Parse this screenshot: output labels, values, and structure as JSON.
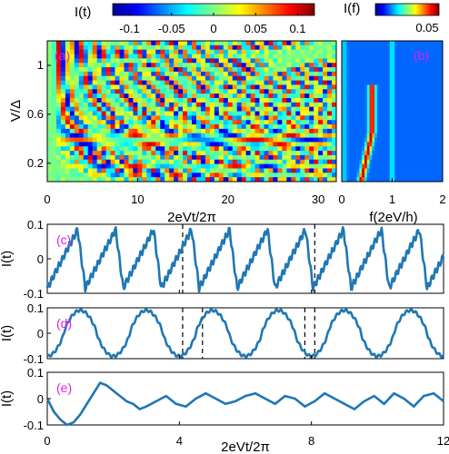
{
  "colors": {
    "trace": "#1f77b4",
    "panel_label": "#e020e0",
    "marker": "#000000",
    "axes": "#000000"
  },
  "chart_data": [
    {
      "panel": "(a)",
      "type": "heatmap",
      "colorbar_label": "I(t)",
      "colorbar_ticks": [
        "-0.1",
        "-0.05",
        "0",
        "0.05",
        "0.1"
      ],
      "colorbar_range": [
        -0.12,
        0.12
      ],
      "xlabel": "2eVt/2π",
      "ylabel": "V/Δ",
      "xticks": [
        "0",
        "10",
        "20",
        "30"
      ],
      "yticks": [
        "0.2",
        "0.6",
        "1"
      ],
      "xlim": [
        0,
        32
      ],
      "ylim": [
        0.05,
        1.2
      ]
    },
    {
      "panel": "(b)",
      "type": "heatmap",
      "colorbar_label": "I(f)",
      "colorbar_ticks": [
        "0.05"
      ],
      "colorbar_range": [
        0,
        0.07
      ],
      "xlabel": "f(2eV/h)",
      "xticks": [
        "0",
        "1",
        "2"
      ],
      "xlim": [
        0,
        2
      ],
      "ylim": [
        0.05,
        1.2
      ]
    },
    {
      "panel": "(c)",
      "type": "line",
      "ylabel": "I(t)",
      "yticks": [
        "-0.1",
        "0",
        "0.1"
      ],
      "ylim": [
        -0.1,
        0.1
      ],
      "xlim": [
        0,
        12
      ],
      "markers_x": [
        4.1,
        8.1
      ],
      "series": [
        {
          "shape": "sawtooth",
          "period": 1.15,
          "amplitude": 0.085,
          "offset": 0.0
        }
      ]
    },
    {
      "panel": "(d)",
      "type": "line",
      "ylabel": "I(t)",
      "yticks": [
        "-0.1",
        "0",
        "0.1"
      ],
      "ylim": [
        -0.1,
        0.1
      ],
      "xlim": [
        0,
        12
      ],
      "markers_x": [
        4.1,
        4.7,
        7.8,
        8.1
      ],
      "series": [
        {
          "shape": "triangle",
          "period": 2.0,
          "amplitude": 0.09,
          "offset": 0.0
        }
      ]
    },
    {
      "panel": "(e)",
      "type": "line",
      "ylabel": "I(t)",
      "yticks": [
        "-0.1",
        "0",
        "0.1"
      ],
      "ylim": [
        -0.1,
        0.1
      ],
      "xlim": [
        0,
        12
      ],
      "xlabel": "2eVt/2π",
      "xticks": [
        "0",
        "4",
        "8",
        "12"
      ],
      "markers_x": [],
      "series": [
        {
          "x": [
            0,
            0.2,
            0.4,
            0.6,
            0.8,
            1.0,
            1.2,
            1.4,
            1.6,
            1.8,
            2.0,
            2.2,
            2.4,
            2.6,
            2.8,
            3.0,
            3.3,
            3.6,
            3.9,
            4.2,
            4.5,
            4.8,
            5.1,
            5.4,
            5.7,
            6.0,
            6.3,
            6.6,
            6.9,
            7.2,
            7.5,
            7.8,
            8.1,
            8.4,
            8.7,
            9.0,
            9.3,
            9.6,
            9.9,
            10.2,
            10.5,
            10.8,
            11.1,
            11.4,
            11.7,
            12.0
          ],
          "y": [
            0.0,
            -0.05,
            -0.08,
            -0.1,
            -0.09,
            -0.06,
            -0.02,
            0.02,
            0.06,
            0.05,
            0.03,
            0.01,
            -0.01,
            -0.02,
            -0.04,
            -0.03,
            -0.01,
            0.01,
            -0.02,
            -0.03,
            0.0,
            0.02,
            0.0,
            -0.02,
            -0.01,
            0.01,
            0.02,
            0.0,
            -0.02,
            0.01,
            0.0,
            -0.03,
            -0.01,
            0.02,
            0.0,
            -0.02,
            -0.04,
            -0.01,
            0.01,
            -0.02,
            0.02,
            0.0,
            -0.03,
            0.01,
            0.02,
            -0.01
          ]
        }
      ]
    }
  ]
}
